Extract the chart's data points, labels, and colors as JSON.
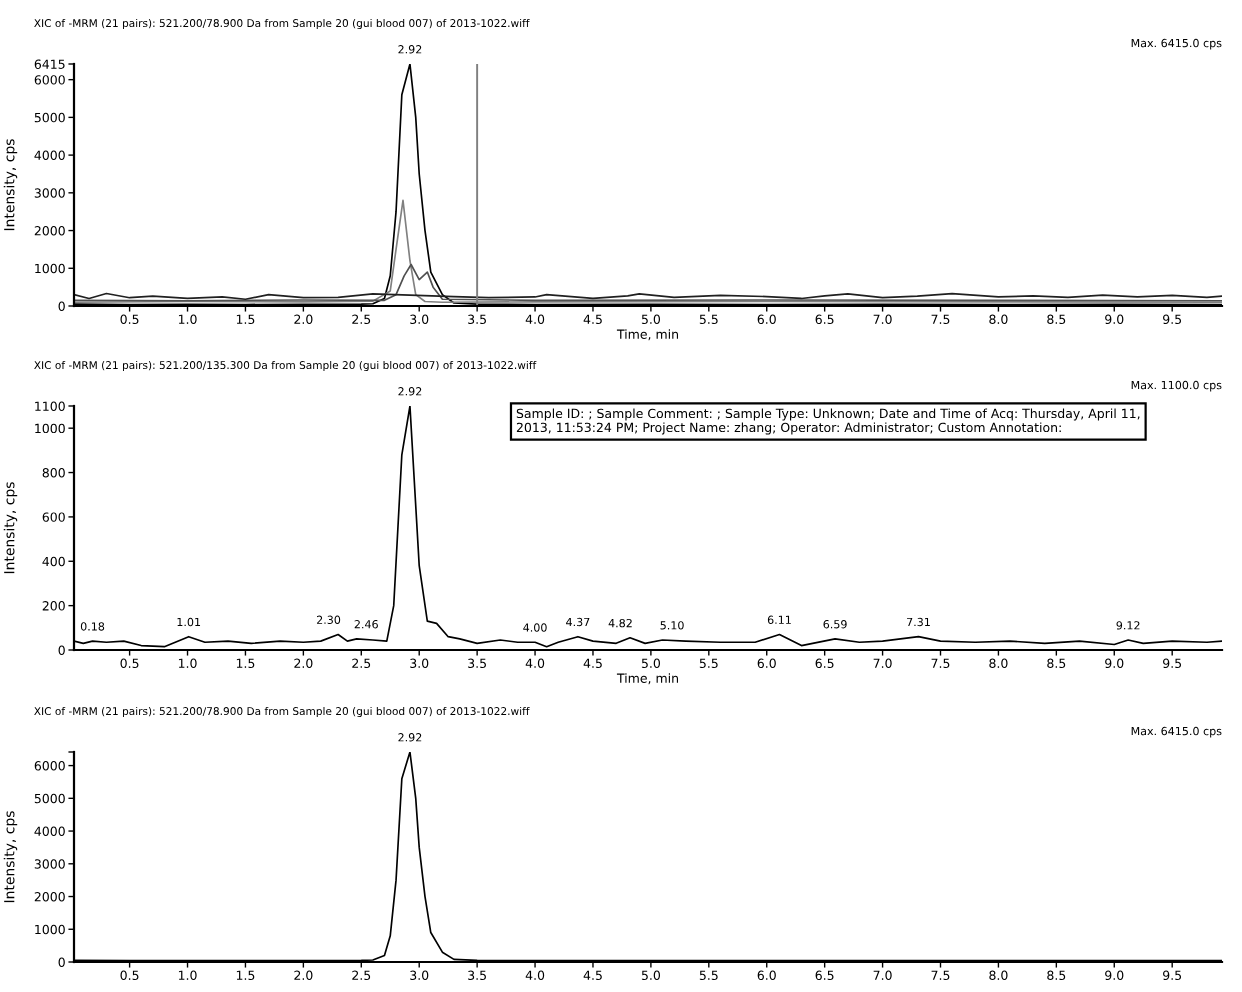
{
  "chart_data": [
    {
      "type": "line",
      "title": "XIC of -MRM (21 pairs): 521.200/78.900 Da from Sample 20 (gui blood 007) of 2013-1022.wiff",
      "xlabel": "Time, min",
      "ylabel": "Intensity, cps",
      "xlim": [
        0.02,
        9.93
      ],
      "ylim": [
        0,
        6415
      ],
      "xticks": [
        0.5,
        {
          "value": 1,
          "label": "1.0"
        },
        1.5,
        {
          "value": 2,
          "label": "2.0"
        },
        2.5,
        {
          "value": 3,
          "label": "3.0"
        },
        3.5,
        {
          "value": 4,
          "label": "4.0"
        },
        4.5,
        {
          "value": 5,
          "label": "5.0"
        },
        5.5,
        {
          "value": 6,
          "label": "6.0"
        },
        6.5,
        {
          "value": 7,
          "label": "7.0"
        },
        7.5,
        {
          "value": 8,
          "label": "8.0"
        },
        8.5,
        {
          "value": 9,
          "label": "9.0"
        },
        9.5
      ],
      "yticks": [
        0,
        1000,
        2000,
        3000,
        4000,
        5000,
        6000,
        6415
      ],
      "grid": false,
      "legend": false,
      "marker": "none",
      "line_style": "solid",
      "series": [
        {
          "color": "#000000",
          "x": [
            0.02,
            0.5,
            1.0,
            1.5,
            2.0,
            2.5,
            2.6,
            2.7,
            2.75,
            2.8,
            2.85,
            2.92,
            2.97,
            3.0,
            3.05,
            3.1,
            3.2,
            3.3,
            3.5,
            4.0,
            5.0,
            6.0,
            7.0,
            8.0,
            9.0,
            9.93
          ],
          "values": [
            50,
            40,
            45,
            40,
            45,
            50,
            60,
            200,
            800,
            2500,
            5600,
            6415,
            5000,
            3500,
            2000,
            900,
            300,
            80,
            50,
            40,
            45,
            40,
            45,
            40,
            45,
            40
          ]
        },
        {
          "color": "#808080",
          "x": [
            0.02,
            1.0,
            2.0,
            2.6,
            2.75,
            2.8,
            2.86,
            2.92,
            2.97,
            3.05,
            3.2,
            4.0,
            6.0,
            8.0,
            9.93
          ],
          "values": [
            100,
            120,
            110,
            130,
            400,
            1500,
            2800,
            1200,
            300,
            120,
            100,
            110,
            120,
            110,
            100
          ]
        },
        {
          "color": "#505050",
          "x": [
            0.02,
            1.0,
            2.0,
            2.7,
            2.8,
            2.87,
            2.93,
            3.0,
            3.07,
            3.12,
            3.2,
            4.0,
            6.0,
            8.0,
            9.93
          ],
          "values": [
            150,
            140,
            160,
            150,
            300,
            800,
            1100,
            700,
            900,
            500,
            180,
            150,
            160,
            150,
            140
          ]
        },
        {
          "color": "#202020",
          "x": [
            0.02,
            0.15,
            0.3,
            0.5,
            0.7,
            1.0,
            1.3,
            1.5,
            1.7,
            2.0,
            2.3,
            2.6,
            3.3,
            3.6,
            4.0,
            4.1,
            4.5,
            4.8,
            4.9,
            5.2,
            5.6,
            6.0,
            6.3,
            6.5,
            6.7,
            7.0,
            7.3,
            7.6,
            8.0,
            8.3,
            8.6,
            8.9,
            9.2,
            9.5,
            9.8,
            9.93
          ],
          "values": [
            300,
            200,
            330,
            220,
            260,
            200,
            240,
            180,
            300,
            220,
            230,
            320,
            250,
            220,
            240,
            300,
            200,
            270,
            320,
            230,
            280,
            250,
            200,
            270,
            320,
            220,
            260,
            330,
            240,
            270,
            230,
            290,
            240,
            280,
            230,
            260
          ]
        }
      ],
      "ref_lines": [
        {
          "axis": "x",
          "value": 3.5,
          "color": "#808080"
        }
      ],
      "annotations": [
        {
          "text": "2.92",
          "x": 2.92,
          "y": 6415
        },
        "Max. 6415.0 cps"
      ]
    },
    {
      "type": "line",
      "title": "XIC of -MRM (21 pairs): 521.200/135.300 Da from Sample 20 (gui blood 007) of 2013-1022.wiff",
      "xlabel": "Time, min",
      "ylabel": "Intensity, cps",
      "xlim": [
        0.02,
        9.93
      ],
      "ylim": [
        0,
        1100
      ],
      "xticks": [
        0.5,
        {
          "value": 1,
          "label": "1.0"
        },
        1.5,
        {
          "value": 2,
          "label": "2.0"
        },
        2.5,
        {
          "value": 3,
          "label": "3.0"
        },
        3.5,
        {
          "value": 4,
          "label": "4.0"
        },
        4.5,
        {
          "value": 5,
          "label": "5.0"
        },
        5.5,
        {
          "value": 6,
          "label": "6.0"
        },
        6.5,
        {
          "value": 7,
          "label": "7.0"
        },
        7.5,
        {
          "value": 8,
          "label": "8.0"
        },
        8.5,
        {
          "value": 9,
          "label": "9.0"
        },
        9.5
      ],
      "yticks": [
        0,
        200,
        400,
        600,
        800,
        1000,
        1100
      ],
      "grid": false,
      "legend": false,
      "marker": "none",
      "line_style": "solid",
      "series": [
        {
          "color": "#000000",
          "x": [
            0.02,
            0.1,
            0.18,
            0.3,
            0.45,
            0.6,
            0.8,
            1.01,
            1.15,
            1.35,
            1.55,
            1.8,
            2.0,
            2.15,
            2.3,
            2.38,
            2.46,
            2.6,
            2.72,
            2.78,
            2.85,
            2.92,
            3.0,
            3.07,
            3.15,
            3.25,
            3.35,
            3.5,
            3.7,
            3.85,
            4.0,
            4.1,
            4.2,
            4.37,
            4.5,
            4.7,
            4.82,
            4.95,
            5.1,
            5.3,
            5.6,
            5.9,
            6.11,
            6.3,
            6.59,
            6.8,
            7.0,
            7.31,
            7.5,
            7.8,
            8.1,
            8.4,
            8.7,
            9.0,
            9.12,
            9.25,
            9.5,
            9.8,
            9.93
          ],
          "values": [
            40,
            30,
            40,
            35,
            40,
            20,
            15,
            60,
            35,
            40,
            30,
            40,
            35,
            40,
            70,
            40,
            50,
            45,
            40,
            200,
            880,
            1100,
            380,
            130,
            120,
            60,
            50,
            30,
            45,
            35,
            35,
            15,
            35,
            60,
            40,
            30,
            55,
            30,
            45,
            40,
            35,
            35,
            70,
            20,
            50,
            35,
            40,
            60,
            40,
            35,
            40,
            30,
            40,
            25,
            45,
            30,
            40,
            35,
            40
          ]
        }
      ],
      "annotations": [
        {
          "text": "0.18",
          "x": 0.18,
          "y": 40
        },
        {
          "text": "1.01",
          "x": 1.01,
          "y": 60
        },
        {
          "text": "2.30",
          "x": 2.3,
          "y": 70
        },
        {
          "text": "2.46",
          "x": 2.46,
          "y": 50
        },
        {
          "text": "2.92",
          "x": 2.92,
          "y": 1100
        },
        {
          "text": "4.00",
          "x": 4.0,
          "y": 35
        },
        {
          "text": "4.37",
          "x": 4.37,
          "y": 60
        },
        {
          "text": "4.82",
          "x": 4.82,
          "y": 55
        },
        {
          "text": "5.10",
          "x": 5.1,
          "y": 45
        },
        {
          "text": "6.11",
          "x": 6.11,
          "y": 70
        },
        {
          "text": "6.59",
          "x": 6.59,
          "y": 50
        },
        {
          "text": "7.31",
          "x": 7.31,
          "y": 60
        },
        {
          "text": "9.12",
          "x": 9.12,
          "y": 45
        },
        "Max. 1100.0 cps",
        "Sample ID: ; Sample Comment: ; Sample Type: Unknown; Date and Time of Acq: Thursday, April 11,\n2013, 11:53:24 PM; Project Name: zhang; Operator: Administrator; Custom Annotation:"
      ]
    },
    {
      "type": "line",
      "title": "XIC of -MRM (21 pairs): 521.200/78.900 Da from Sample 20 (gui blood 007) of 2013-1022.wiff",
      "ylabel": "Intensity, cps",
      "xlim": [
        0.02,
        9.93
      ],
      "ylim": [
        0,
        6415
      ],
      "xticks": [
        0.5,
        {
          "value": 1,
          "label": "1.0"
        },
        1.5,
        {
          "value": 2,
          "label": "2.0"
        },
        2.5,
        {
          "value": 3,
          "label": "3.0"
        },
        3.5,
        {
          "value": 4,
          "label": "4.0"
        },
        4.5,
        {
          "value": 5,
          "label": "5.0"
        },
        5.5,
        {
          "value": 6,
          "label": "6.0"
        },
        6.5,
        {
          "value": 7,
          "label": "7.0"
        },
        7.5,
        {
          "value": 8,
          "label": "8.0"
        },
        8.5,
        {
          "value": 9,
          "label": "9.0"
        },
        9.5
      ],
      "yticks": [
        0,
        1000,
        2000,
        3000,
        4000,
        5000,
        6000,
        {
          "value": 6415,
          "label": null
        }
      ],
      "grid": false,
      "legend": false,
      "marker": "none",
      "line_style": "solid",
      "series": [
        {
          "color": "#000000",
          "x": [
            0.02,
            0.5,
            1.0,
            1.5,
            2.0,
            2.5,
            2.6,
            2.7,
            2.75,
            2.8,
            2.85,
            2.92,
            2.97,
            3.0,
            3.05,
            3.1,
            3.2,
            3.3,
            3.5,
            4.0,
            5.0,
            6.0,
            7.0,
            8.0,
            9.0,
            9.93
          ],
          "values": [
            50,
            40,
            45,
            40,
            45,
            50,
            60,
            200,
            800,
            2500,
            5600,
            6415,
            5000,
            3500,
            2000,
            900,
            300,
            80,
            50,
            40,
            45,
            40,
            45,
            40,
            45,
            40
          ]
        }
      ],
      "annotations": [
        {
          "text": "2.92",
          "x": 2.92,
          "y": 6415
        },
        "Max. 6415.0 cps"
      ]
    }
  ]
}
